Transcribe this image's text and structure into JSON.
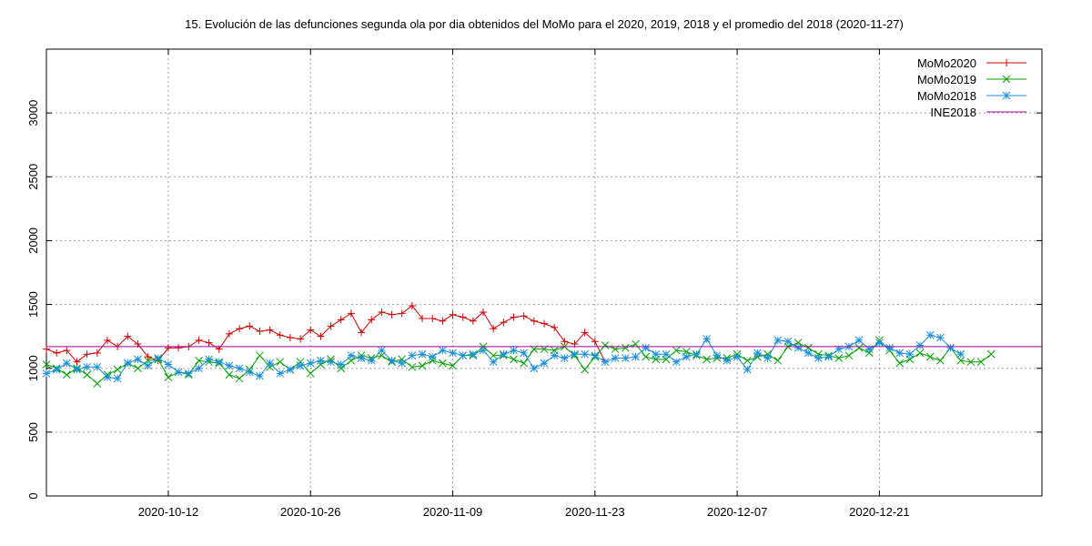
{
  "chart_data": {
    "type": "line",
    "title": "15. Evolución de las defunciones segunda ola por dia obtenidos del MoMo para el 2020, 2019, 2018 y el promedio del 2018 (2020-11-27)",
    "xlabel": "",
    "ylabel": "",
    "x_start": "2020-09-30",
    "xlim": [
      0,
      98
    ],
    "ylim": [
      0,
      3500
    ],
    "y_ticks": [
      0,
      500,
      1000,
      1500,
      2000,
      2500,
      3000
    ],
    "y_tick_labels": [
      "0",
      "500",
      "1000",
      "1500",
      "2000",
      "2500",
      "3000"
    ],
    "x_ticks": [
      12,
      26,
      40,
      54,
      68,
      82
    ],
    "x_tick_labels": [
      "2020-10-12",
      "2020-10-26",
      "2020-11-09",
      "2020-11-23",
      "2020-12-07",
      "2020-12-21"
    ],
    "grid": true,
    "legend_position": "top-right",
    "series": [
      {
        "name": "MoMo2020",
        "color": "#d00000",
        "marker": "plus",
        "values": [
          1150,
          1120,
          1140,
          1050,
          1110,
          1120,
          1220,
          1170,
          1250,
          1190,
          1090,
          1060,
          1160,
          1160,
          1170,
          1220,
          1200,
          1150,
          1270,
          1310,
          1330,
          1290,
          1300,
          1260,
          1240,
          1230,
          1300,
          1250,
          1330,
          1380,
          1430,
          1280,
          1380,
          1440,
          1420,
          1430,
          1490,
          1390,
          1390,
          1370,
          1420,
          1400,
          1370,
          1440,
          1310,
          1360,
          1400,
          1410,
          1370,
          1350,
          1320,
          1210,
          1190,
          1280,
          1210,
          1050
        ]
      },
      {
        "name": "MoMo2019",
        "color": "#00a000",
        "marker": "cross",
        "values": [
          1030,
          1000,
          950,
          1000,
          950,
          880,
          950,
          990,
          1040,
          1000,
          1060,
          1070,
          930,
          970,
          950,
          1060,
          1050,
          1040,
          950,
          920,
          990,
          1100,
          1010,
          1050,
          990,
          1050,
          960,
          1030,
          1070,
          1000,
          1060,
          1100,
          1080,
          1100,
          1050,
          1070,
          1010,
          1020,
          1060,
          1040,
          1020,
          1100,
          1100,
          1170,
          1100,
          1100,
          1070,
          1040,
          1150,
          1150,
          1140,
          1170,
          1100,
          990,
          1090,
          1180,
          1150,
          1160,
          1190,
          1090,
          1070,
          1070,
          1140,
          1130,
          1100,
          1070,
          1080,
          1080,
          1110,
          1060,
          1090,
          1110,
          1060,
          1170,
          1200,
          1160,
          1110,
          1100,
          1080,
          1100,
          1160,
          1120,
          1220,
          1140,
          1040,
          1070,
          1120,
          1090,
          1060,
          1160,
          1060,
          1050,
          1050,
          1110
        ]
      },
      {
        "name": "MoMo2018",
        "color": "#1a8fdc",
        "marker": "star",
        "values": [
          960,
          990,
          1040,
          990,
          1010,
          1010,
          930,
          920,
          1040,
          1070,
          1020,
          1080,
          1030,
          970,
          960,
          1000,
          1070,
          1050,
          1020,
          1000,
          970,
          940,
          1040,
          960,
          990,
          1020,
          1040,
          1060,
          1050,
          1030,
          1100,
          1080,
          1060,
          1140,
          1060,
          1040,
          1100,
          1110,
          1090,
          1140,
          1120,
          1100,
          1110,
          1140,
          1050,
          1110,
          1140,
          1120,
          1000,
          1040,
          1100,
          1080,
          1110,
          1110,
          1100,
          1050,
          1080,
          1080,
          1090,
          1160,
          1110,
          1110,
          1050,
          1090,
          1110,
          1230,
          1100,
          1060,
          1090,
          990,
          1120,
          1080,
          1220,
          1210,
          1160,
          1120,
          1080,
          1090,
          1150,
          1170,
          1220,
          1150,
          1200,
          1160,
          1120,
          1110,
          1180,
          1260,
          1240,
          1160,
          1110
        ]
      },
      {
        "name": "INE2018",
        "color": "#a000a0",
        "marker": "none",
        "values": [
          1170,
          1170
        ]
      }
    ]
  }
}
